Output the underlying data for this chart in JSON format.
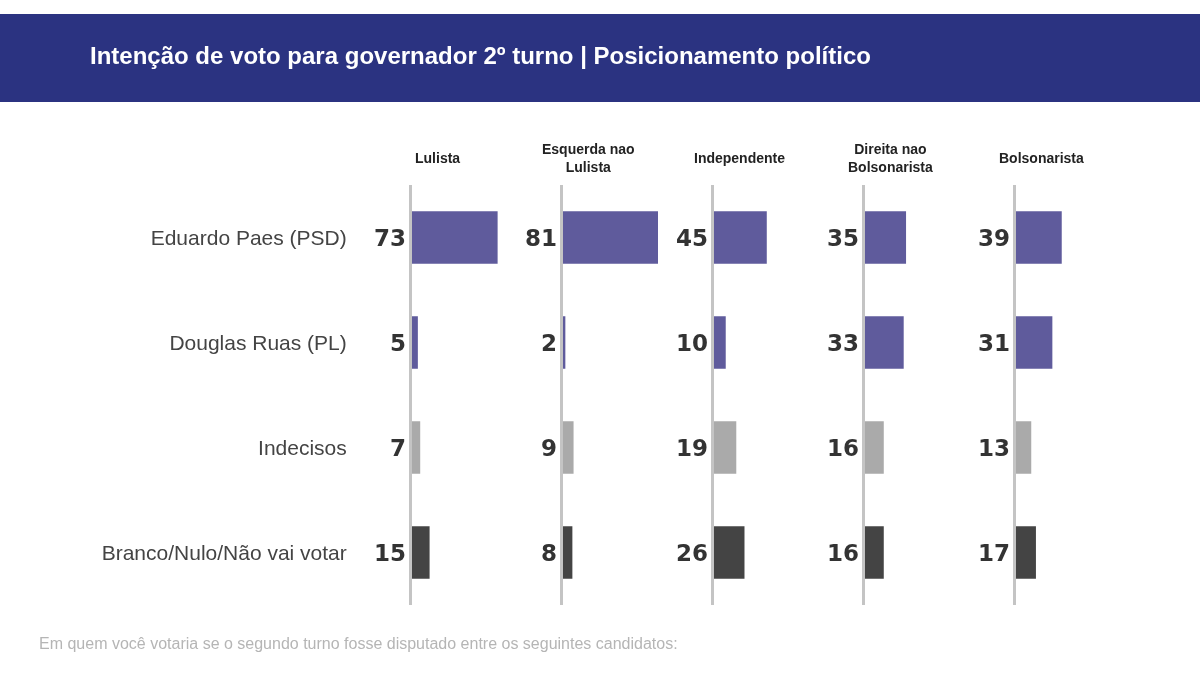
{
  "chart_data": [
    {
      "type": "bar",
      "orientation": "horizontal",
      "title": "Lulista",
      "annotations": [
        "Intenção de voto para governador 2º turno | Posicionamento político",
        "Em quem você votaria se o segundo turno fosse disputado entre os seguintes candidatos:"
      ],
      "categories": [
        "Eduardo Paes (PSD)",
        "Douglas Ruas (PL)",
        "Indecisos",
        "Branco/Nulo/Não vai votar"
      ],
      "values": [
        73,
        5,
        7,
        15
      ],
      "colors": [
        "#5f5b9c",
        "#5f5b9c",
        "#aaaaaa",
        "#444444"
      ],
      "data_labels": true,
      "tick_labels": "y"
    },
    {
      "type": "bar",
      "orientation": "horizontal",
      "title": "Esquerda nao\nLulista",
      "categories": [
        null,
        null,
        null,
        null
      ],
      "values": [
        81,
        2,
        9,
        8
      ],
      "colors": [
        "#5f5b9c",
        "#5f5b9c",
        "#aaaaaa",
        "#444444"
      ],
      "data_labels": true,
      "tick_labels": false
    },
    {
      "type": "bar",
      "orientation": "horizontal",
      "title": "Independente",
      "categories": [
        null,
        null,
        null,
        null
      ],
      "values": [
        45,
        10,
        19,
        26
      ],
      "colors": [
        "#5f5b9c",
        "#5f5b9c",
        "#aaaaaa",
        "#444444"
      ],
      "data_labels": true,
      "tick_labels": false
    },
    {
      "type": "bar",
      "orientation": "horizontal",
      "title": "Direita nao\nBolsonarista",
      "categories": [
        null,
        null,
        null,
        null
      ],
      "values": [
        35,
        33,
        16,
        16
      ],
      "colors": [
        "#5f5b9c",
        "#5f5b9c",
        "#aaaaaa",
        "#444444"
      ],
      "data_labels": true,
      "tick_labels": false
    },
    {
      "type": "bar",
      "orientation": "horizontal",
      "title": "Bolsonarista",
      "categories": [
        null,
        null,
        null,
        null
      ],
      "values": [
        39,
        31,
        13,
        17
      ],
      "colors": [
        "#5f5b9c",
        "#5f5b9c",
        "#aaaaaa",
        "#444444"
      ],
      "data_labels": true,
      "tick_labels": false
    }
  ]
}
